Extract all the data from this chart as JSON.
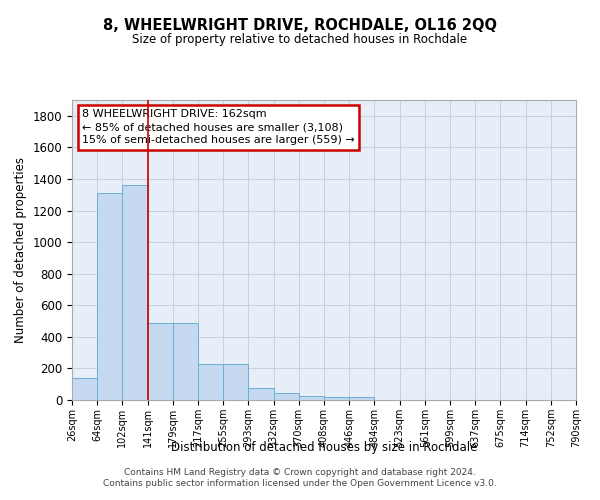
{
  "title": "8, WHEELWRIGHT DRIVE, ROCHDALE, OL16 2QQ",
  "subtitle": "Size of property relative to detached houses in Rochdale",
  "xlabel": "Distribution of detached houses by size in Rochdale",
  "ylabel": "Number of detached properties",
  "bar_values": [
    137,
    1310,
    1360,
    490,
    490,
    225,
    225,
    75,
    45,
    28,
    18,
    18,
    0,
    0,
    0,
    0,
    0,
    0,
    0,
    0
  ],
  "categories": [
    "26sqm",
    "64sqm",
    "102sqm",
    "141sqm",
    "179sqm",
    "217sqm",
    "255sqm",
    "293sqm",
    "332sqm",
    "370sqm",
    "408sqm",
    "446sqm",
    "484sqm",
    "523sqm",
    "561sqm",
    "599sqm",
    "637sqm",
    "675sqm",
    "714sqm",
    "752sqm",
    "790sqm"
  ],
  "bar_color": "#c5d9f0",
  "bar_edge_color": "#6baed6",
  "property_line_x": 3.0,
  "annotation_text": "8 WHEELWRIGHT DRIVE: 162sqm\n← 85% of detached houses are smaller (3,108)\n15% of semi-detached houses are larger (559) →",
  "annotation_box_facecolor": "#ffffff",
  "annotation_box_edgecolor": "#cc0000",
  "ylim": [
    0,
    1900
  ],
  "yticks": [
    0,
    200,
    400,
    600,
    800,
    1000,
    1200,
    1400,
    1600,
    1800
  ],
  "grid_color": "#c8d0e0",
  "bg_color": "#e8eef8",
  "vline_color": "#cc0000",
  "footer_line1": "Contains HM Land Registry data © Crown copyright and database right 2024.",
  "footer_line2": "Contains public sector information licensed under the Open Government Licence v3.0."
}
